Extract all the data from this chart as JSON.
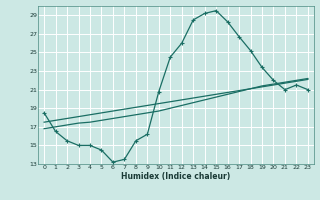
{
  "xlabel": "Humidex (Indice chaleur)",
  "background_color": "#cce8e4",
  "line_color": "#1a6e64",
  "grid_color": "#b0d8d2",
  "xmin": -0.5,
  "xmax": 23.5,
  "ymin": 13,
  "ymax": 30,
  "yticks": [
    13,
    15,
    17,
    19,
    21,
    23,
    25,
    27,
    29
  ],
  "xticks": [
    0,
    1,
    2,
    3,
    4,
    5,
    6,
    7,
    8,
    9,
    10,
    11,
    12,
    13,
    14,
    15,
    16,
    17,
    18,
    19,
    20,
    21,
    22,
    23
  ],
  "curve1_x": [
    0,
    1,
    2,
    3,
    4,
    5,
    6,
    7,
    8,
    9,
    10,
    11,
    12,
    13,
    14,
    15,
    16,
    17,
    18,
    19,
    20,
    21,
    22,
    23
  ],
  "curve1_y": [
    18.5,
    16.5,
    15.5,
    15.0,
    15.0,
    14.5,
    13.2,
    13.5,
    15.5,
    16.2,
    20.8,
    24.5,
    26.0,
    28.5,
    29.2,
    29.5,
    28.3,
    26.7,
    25.2,
    23.4,
    22.0,
    21.0,
    21.5,
    21.0
  ],
  "curve2_x": [
    0,
    1,
    2,
    3,
    4,
    5,
    6,
    7,
    8,
    9,
    10,
    11,
    12,
    13,
    14,
    15,
    16,
    17,
    18,
    19,
    20,
    21,
    22,
    23
  ],
  "curve2_y": [
    16.8,
    17.0,
    17.2,
    17.4,
    17.5,
    17.7,
    17.9,
    18.1,
    18.3,
    18.5,
    18.7,
    19.0,
    19.3,
    19.6,
    19.9,
    20.2,
    20.5,
    20.8,
    21.1,
    21.4,
    21.6,
    21.8,
    22.0,
    22.2
  ],
  "curve3_x": [
    0,
    1,
    2,
    3,
    4,
    5,
    6,
    7,
    8,
    9,
    10,
    11,
    12,
    13,
    14,
    15,
    16,
    17,
    18,
    19,
    20,
    21,
    22,
    23
  ],
  "curve3_y": [
    17.5,
    17.7,
    17.9,
    18.1,
    18.3,
    18.5,
    18.7,
    18.9,
    19.1,
    19.3,
    19.5,
    19.7,
    19.9,
    20.1,
    20.3,
    20.5,
    20.7,
    20.9,
    21.1,
    21.3,
    21.5,
    21.7,
    21.9,
    22.1
  ]
}
